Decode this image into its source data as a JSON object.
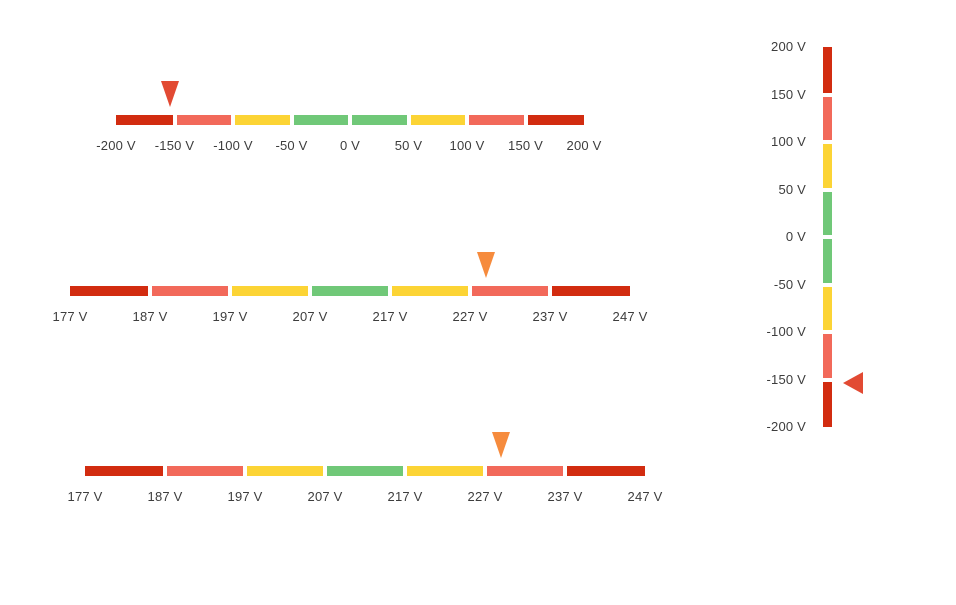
{
  "styles": {
    "background": "#ffffff",
    "label_color": "#3d3d3d",
    "palette": {
      "danger_dark_red": "#d22c10",
      "warning_salmon": "#f2695a",
      "caution_yellow": "#fcd435",
      "ok_green": "#70c878",
      "marker_red": "#e24a33",
      "marker_orange": "#f68b3d"
    }
  },
  "chart_data": [
    {
      "id": "gauge-top",
      "type": "linear-gauge",
      "orientation": "horizontal",
      "unit": "V",
      "min": -200,
      "max": 200,
      "ticks": [
        -200,
        -150,
        -100,
        -50,
        0,
        50,
        100,
        150,
        200
      ],
      "tick_labels": [
        "-200 V",
        "-150 V",
        "-100 V",
        "-50 V",
        "0 V",
        "50 V",
        "100 V",
        "150 V",
        "200 V"
      ],
      "segments": [
        {
          "from": -200,
          "to": -150,
          "color": "#d22c10"
        },
        {
          "from": -150,
          "to": -100,
          "color": "#f2695a"
        },
        {
          "from": -100,
          "to": -50,
          "color": "#fcd435"
        },
        {
          "from": -50,
          "to": 0,
          "color": "#70c878"
        },
        {
          "from": 0,
          "to": 50,
          "color": "#70c878"
        },
        {
          "from": 50,
          "to": 100,
          "color": "#fcd435"
        },
        {
          "from": 100,
          "to": 150,
          "color": "#f2695a"
        },
        {
          "from": 150,
          "to": 200,
          "color": "#d22c10"
        }
      ],
      "marker": {
        "value": -154,
        "shape": "triangle-down",
        "color": "#e24a33"
      }
    },
    {
      "id": "gauge-middle",
      "type": "linear-gauge",
      "orientation": "horizontal",
      "unit": "V",
      "min": 177,
      "max": 247,
      "ticks": [
        177,
        187,
        197,
        207,
        217,
        227,
        237,
        247
      ],
      "tick_labels": [
        "177 V",
        "187 V",
        "197 V",
        "207 V",
        "217 V",
        "227 V",
        "237 V",
        "247 V"
      ],
      "segments": [
        {
          "from": 177,
          "to": 187,
          "color": "#d22c10"
        },
        {
          "from": 187,
          "to": 197,
          "color": "#f2695a"
        },
        {
          "from": 197,
          "to": 207,
          "color": "#fcd435"
        },
        {
          "from": 207,
          "to": 217,
          "color": "#70c878"
        },
        {
          "from": 217,
          "to": 227,
          "color": "#fcd435"
        },
        {
          "from": 227,
          "to": 237,
          "color": "#f2695a"
        },
        {
          "from": 237,
          "to": 247,
          "color": "#d22c10"
        }
      ],
      "marker": {
        "value": 229,
        "shape": "triangle-down",
        "color": "#f68b3d"
      }
    },
    {
      "id": "gauge-bottom",
      "type": "linear-gauge",
      "orientation": "horizontal",
      "unit": "V",
      "min": 177,
      "max": 247,
      "ticks": [
        177,
        187,
        197,
        207,
        217,
        227,
        237,
        247
      ],
      "tick_labels": [
        "177 V",
        "187 V",
        "197 V",
        "207 V",
        "217 V",
        "227 V",
        "237 V",
        "247 V"
      ],
      "segments": [
        {
          "from": 177,
          "to": 187,
          "color": "#d22c10"
        },
        {
          "from": 187,
          "to": 197,
          "color": "#f2695a"
        },
        {
          "from": 197,
          "to": 207,
          "color": "#fcd435"
        },
        {
          "from": 207,
          "to": 217,
          "color": "#70c878"
        },
        {
          "from": 217,
          "to": 227,
          "color": "#fcd435"
        },
        {
          "from": 227,
          "to": 237,
          "color": "#f2695a"
        },
        {
          "from": 237,
          "to": 247,
          "color": "#d22c10"
        }
      ],
      "marker": {
        "value": 229,
        "shape": "triangle-down",
        "color": "#f68b3d"
      }
    },
    {
      "id": "gauge-vertical",
      "type": "linear-gauge",
      "orientation": "vertical",
      "unit": "V",
      "min": -200,
      "max": 200,
      "ticks": [
        200,
        150,
        100,
        50,
        0,
        -50,
        -100,
        -150,
        -200
      ],
      "tick_labels": [
        "200 V",
        "150 V",
        "100 V",
        "50 V",
        "0 V",
        "-50 V",
        "-100 V",
        "-150 V",
        "-200 V"
      ],
      "segments": [
        {
          "from": -200,
          "to": -150,
          "color": "#d22c10"
        },
        {
          "from": -150,
          "to": -100,
          "color": "#f2695a"
        },
        {
          "from": -100,
          "to": -50,
          "color": "#fcd435"
        },
        {
          "from": -50,
          "to": 0,
          "color": "#70c878"
        },
        {
          "from": 0,
          "to": 50,
          "color": "#70c878"
        },
        {
          "from": 50,
          "to": 100,
          "color": "#fcd435"
        },
        {
          "from": 100,
          "to": 150,
          "color": "#f2695a"
        },
        {
          "from": 150,
          "to": 200,
          "color": "#d22c10"
        }
      ],
      "marker": {
        "value": -154,
        "shape": "triangle-left",
        "color": "#e24a33"
      }
    }
  ]
}
